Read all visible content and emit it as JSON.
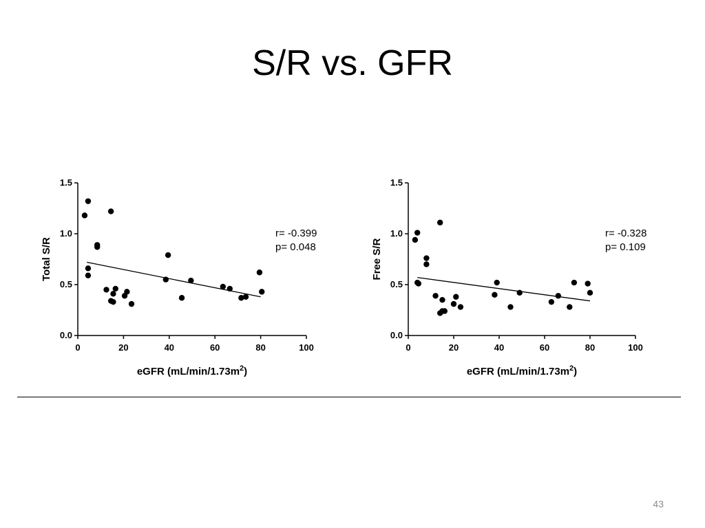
{
  "slide": {
    "title": "S/R vs. GFR",
    "page_number": "43"
  },
  "chart_data": [
    {
      "type": "scatter",
      "title": "",
      "xlabel": "eGFR (mL/min/1.73m",
      "xlabel_superscript": "2",
      "xlabel_suffix": ")",
      "ylabel": "Total S/R",
      "xlim": [
        0,
        100
      ],
      "ylim": [
        0,
        1.5
      ],
      "xticks": [
        0,
        20,
        40,
        60,
        80,
        100
      ],
      "yticks": [
        "0.0",
        "0.5",
        "1.0",
        "1.5"
      ],
      "grid": false,
      "stats": {
        "r": "r= -0.399",
        "p": "p= 0.048"
      },
      "trendline": {
        "x": [
          4,
          80
        ],
        "y": [
          0.72,
          0.38
        ]
      },
      "points": [
        {
          "x": 3,
          "y": 1.18
        },
        {
          "x": 4.5,
          "y": 1.32
        },
        {
          "x": 4.5,
          "y": 0.66
        },
        {
          "x": 4.5,
          "y": 0.59
        },
        {
          "x": 8.5,
          "y": 0.89
        },
        {
          "x": 8.5,
          "y": 0.87
        },
        {
          "x": 12.5,
          "y": 0.45
        },
        {
          "x": 14.5,
          "y": 1.22
        },
        {
          "x": 14.5,
          "y": 0.34
        },
        {
          "x": 15.5,
          "y": 0.33
        },
        {
          "x": 15.5,
          "y": 0.41
        },
        {
          "x": 16.5,
          "y": 0.46
        },
        {
          "x": 20.5,
          "y": 0.39
        },
        {
          "x": 21.5,
          "y": 0.43
        },
        {
          "x": 23.5,
          "y": 0.31
        },
        {
          "x": 38.5,
          "y": 0.55
        },
        {
          "x": 39.5,
          "y": 0.79
        },
        {
          "x": 45.5,
          "y": 0.37
        },
        {
          "x": 49.5,
          "y": 0.54
        },
        {
          "x": 63.5,
          "y": 0.48
        },
        {
          "x": 66.5,
          "y": 0.46
        },
        {
          "x": 71.5,
          "y": 0.37
        },
        {
          "x": 73.5,
          "y": 0.38
        },
        {
          "x": 79.5,
          "y": 0.62
        },
        {
          "x": 80.5,
          "y": 0.43
        }
      ]
    },
    {
      "type": "scatter",
      "title": "",
      "xlabel": "eGFR (mL/min/1.73m",
      "xlabel_superscript": "2",
      "xlabel_suffix": ")",
      "ylabel": "Free S/R",
      "xlim": [
        0,
        100
      ],
      "ylim": [
        0,
        1.5
      ],
      "xticks": [
        0,
        20,
        40,
        60,
        80,
        100
      ],
      "yticks": [
        "0.0",
        "0.5",
        "1.0",
        "1.5"
      ],
      "grid": false,
      "stats": {
        "r": "r= -0.328",
        "p": "p= 0.109"
      },
      "trendline": {
        "x": [
          4,
          80
        ],
        "y": [
          0.57,
          0.34
        ]
      },
      "points": [
        {
          "x": 3,
          "y": 0.94
        },
        {
          "x": 4,
          "y": 1.01
        },
        {
          "x": 4,
          "y": 0.52
        },
        {
          "x": 4.5,
          "y": 0.51
        },
        {
          "x": 8,
          "y": 0.76
        },
        {
          "x": 8,
          "y": 0.7
        },
        {
          "x": 12,
          "y": 0.39
        },
        {
          "x": 14,
          "y": 1.11
        },
        {
          "x": 14,
          "y": 0.22
        },
        {
          "x": 15,
          "y": 0.35
        },
        {
          "x": 15,
          "y": 0.24
        },
        {
          "x": 16,
          "y": 0.24
        },
        {
          "x": 20,
          "y": 0.31
        },
        {
          "x": 21,
          "y": 0.38
        },
        {
          "x": 23,
          "y": 0.28
        },
        {
          "x": 38,
          "y": 0.4
        },
        {
          "x": 39,
          "y": 0.52
        },
        {
          "x": 45,
          "y": 0.28
        },
        {
          "x": 49,
          "y": 0.42
        },
        {
          "x": 63,
          "y": 0.33
        },
        {
          "x": 66,
          "y": 0.39
        },
        {
          "x": 71,
          "y": 0.28
        },
        {
          "x": 73,
          "y": 0.52
        },
        {
          "x": 79,
          "y": 0.51
        },
        {
          "x": 80,
          "y": 0.42
        }
      ]
    }
  ]
}
